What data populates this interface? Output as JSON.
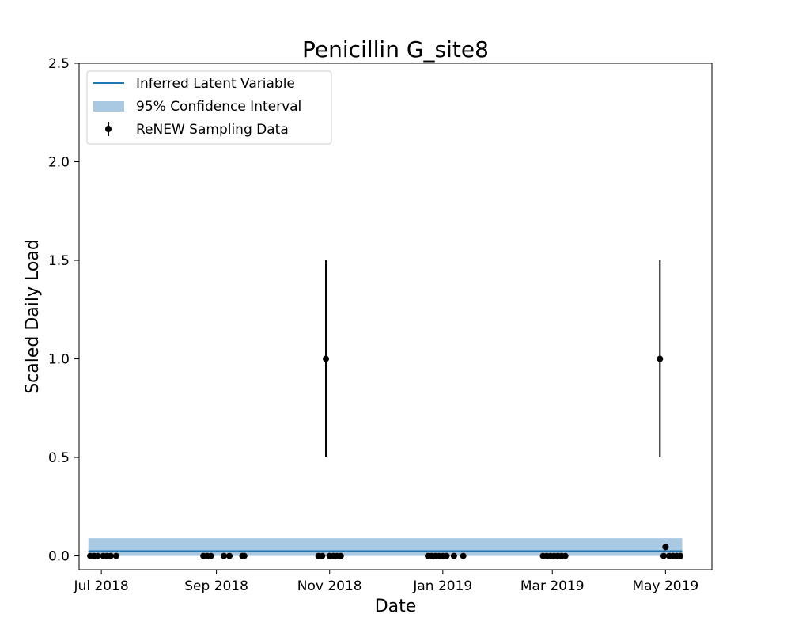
{
  "chart_data": {
    "type": "scatter",
    "title": "Penicillin G_site8",
    "xlabel": "Date",
    "ylabel": "Scaled Daily Load",
    "ylim": [
      -0.07,
      2.5
    ],
    "xlim": [
      "2018-06-19",
      "2019-05-26"
    ],
    "y_ticks": [
      {
        "value": 0.0,
        "label": "0.0"
      },
      {
        "value": 0.5,
        "label": "0.5"
      },
      {
        "value": 1.0,
        "label": "1.0"
      },
      {
        "value": 1.5,
        "label": "1.5"
      },
      {
        "value": 2.0,
        "label": "2.0"
      },
      {
        "value": 2.5,
        "label": "2.5"
      }
    ],
    "x_ticks": [
      {
        "date": "2018-07-01",
        "label": "Jul 2018"
      },
      {
        "date": "2018-09-01",
        "label": "Sep 2018"
      },
      {
        "date": "2018-11-01",
        "label": "Nov 2018"
      },
      {
        "date": "2019-01-01",
        "label": "Jan 2019"
      },
      {
        "date": "2019-03-01",
        "label": "Mar 2019"
      },
      {
        "date": "2019-05-01",
        "label": "May 2019"
      }
    ],
    "grid": false,
    "legend_position": "upper-left",
    "legend": [
      {
        "label": "Inferred Latent Variable",
        "kind": "line",
        "color": "#1f77b4"
      },
      {
        "label": "95% Confidence Interval",
        "kind": "band",
        "color": "#a9c9e3"
      },
      {
        "label": "ReNEW Sampling Data",
        "kind": "errorbar",
        "color": "#000000"
      }
    ],
    "latent": {
      "x_start": "2018-06-24",
      "x_end": "2019-05-10",
      "value": 0.025,
      "ci_lower": 0.0,
      "ci_upper": 0.09,
      "color": "#1f77b4",
      "band_color": "#a9c9e3"
    },
    "samples": [
      {
        "x": "2018-06-25",
        "y": 0.0
      },
      {
        "x": "2018-06-27",
        "y": 0.0
      },
      {
        "x": "2018-06-29",
        "y": 0.0
      },
      {
        "x": "2018-07-02",
        "y": 0.0
      },
      {
        "x": "2018-07-04",
        "y": 0.0
      },
      {
        "x": "2018-07-06",
        "y": 0.0
      },
      {
        "x": "2018-07-09",
        "y": 0.0
      },
      {
        "x": "2018-08-25",
        "y": 0.0
      },
      {
        "x": "2018-08-27",
        "y": 0.0
      },
      {
        "x": "2018-08-29",
        "y": 0.0
      },
      {
        "x": "2018-09-05",
        "y": 0.0
      },
      {
        "x": "2018-09-08",
        "y": 0.0
      },
      {
        "x": "2018-09-15",
        "y": 0.0
      },
      {
        "x": "2018-09-16",
        "y": 0.0
      },
      {
        "x": "2018-10-26",
        "y": 0.0
      },
      {
        "x": "2018-10-28",
        "y": 0.0
      },
      {
        "x": "2018-10-30",
        "y": 1.0,
        "err": 0.5
      },
      {
        "x": "2018-11-01",
        "y": 0.0
      },
      {
        "x": "2018-11-03",
        "y": 0.0
      },
      {
        "x": "2018-11-05",
        "y": 0.0
      },
      {
        "x": "2018-11-07",
        "y": 0.0
      },
      {
        "x": "2018-12-24",
        "y": 0.0
      },
      {
        "x": "2018-12-26",
        "y": 0.0
      },
      {
        "x": "2018-12-28",
        "y": 0.0
      },
      {
        "x": "2018-12-30",
        "y": 0.0
      },
      {
        "x": "2019-01-01",
        "y": 0.0
      },
      {
        "x": "2019-01-03",
        "y": 0.0
      },
      {
        "x": "2019-01-07",
        "y": 0.0
      },
      {
        "x": "2019-01-12",
        "y": 0.0
      },
      {
        "x": "2019-02-24",
        "y": 0.0
      },
      {
        "x": "2019-02-26",
        "y": 0.0
      },
      {
        "x": "2019-02-28",
        "y": 0.0
      },
      {
        "x": "2019-03-02",
        "y": 0.0
      },
      {
        "x": "2019-03-04",
        "y": 0.0
      },
      {
        "x": "2019-03-06",
        "y": 0.0
      },
      {
        "x": "2019-03-08",
        "y": 0.0
      },
      {
        "x": "2019-04-28",
        "y": 1.0,
        "err": 0.5
      },
      {
        "x": "2019-04-30",
        "y": 0.0
      },
      {
        "x": "2019-05-01",
        "y": 0.045,
        "err": 0.01
      },
      {
        "x": "2019-05-03",
        "y": 0.0
      },
      {
        "x": "2019-05-05",
        "y": 0.0
      },
      {
        "x": "2019-05-07",
        "y": 0.0
      },
      {
        "x": "2019-05-09",
        "y": 0.0
      }
    ]
  }
}
